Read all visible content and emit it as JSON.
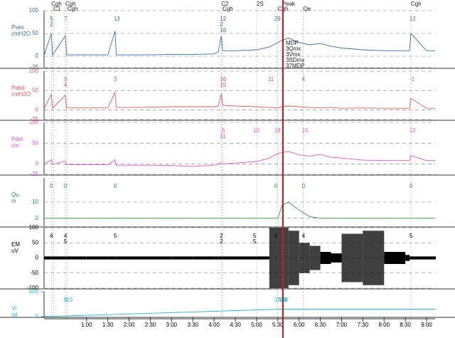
{
  "chart_data": [
    {
      "type": "line",
      "title": "Pves",
      "subtitle": "cmH2O",
      "x": [
        0,
        0.17,
        0.2,
        0.5,
        0.53,
        1,
        1.5,
        1.67,
        1.7,
        2,
        2.5,
        3,
        3.5,
        4,
        4.1,
        4.17,
        4.2,
        4.5,
        5,
        5.3,
        5.5,
        5.6,
        5.75,
        6,
        6.25,
        6.5,
        6.75,
        7,
        7.5,
        8,
        8.5,
        8.6,
        8.63,
        9,
        9.2
      ],
      "series": [
        {
          "color": "#3a6ea5",
          "values": [
            2,
            50,
            3,
            45,
            3,
            3,
            3,
            55,
            3,
            3,
            3,
            4,
            4,
            5,
            10,
            45,
            12,
            12,
            14,
            20,
            30,
            35,
            40,
            30,
            25,
            28,
            22,
            18,
            14,
            12,
            12,
            12,
            50,
            12,
            12
          ]
        }
      ],
      "ylim": [
        -25,
        100
      ],
      "yticks": [
        -25,
        0,
        50,
        100
      ],
      "grid": true,
      "events": [
        {
          "x": 0.17,
          "label": "Cgh"
        },
        {
          "x": 0.22,
          "label": "C1"
        },
        {
          "x": 0.5,
          "label": "Cgh"
        },
        {
          "x": 0.55,
          "label": "Cgh"
        },
        {
          "x": 4.17,
          "label": "C2"
        },
        {
          "x": 4.2,
          "label": "Cgh"
        },
        {
          "x": 5.0,
          "label": "2S"
        },
        {
          "x": 5.5,
          "label": "Cgh"
        },
        {
          "x": 5.6,
          "label": "Peak"
        },
        {
          "x": 6.1,
          "label": "Qe"
        },
        {
          "x": 8.63,
          "label": "Cgh"
        }
      ],
      "markers": [
        "MDP",
        "3Qmx",
        "3Vmx",
        "3SDmx",
        "37MDP"
      ],
      "annotations": [
        {
          "x": 0.17,
          "label": "5"
        },
        {
          "x": 0.17,
          "label": "2"
        },
        {
          "x": 0.5,
          "label": "7"
        },
        {
          "x": 1.67,
          "label": "13"
        },
        {
          "x": 4.17,
          "label": "12"
        },
        {
          "x": 4.17,
          "label": "2"
        },
        {
          "x": 4.17,
          "label": "16"
        },
        {
          "x": 5.45,
          "label": "29"
        },
        {
          "x": 8.63,
          "label": "12"
        }
      ]
    },
    {
      "type": "line",
      "title": "Pabd",
      "subtitle": "cmH2O",
      "x": [
        0,
        0.17,
        0.2,
        0.5,
        0.53,
        1,
        1.5,
        1.67,
        1.7,
        2,
        2.5,
        3,
        3.5,
        4,
        4.1,
        4.17,
        4.2,
        4.5,
        5,
        5.3,
        5.5,
        5.6,
        5.75,
        6,
        6.25,
        6.5,
        6.75,
        7,
        7.5,
        8,
        8.5,
        8.6,
        8.63,
        9,
        9.2
      ],
      "series": [
        {
          "color": "#e05a5a",
          "values": [
            3,
            40,
            4,
            38,
            5,
            5,
            5,
            45,
            6,
            6,
            7,
            8,
            8,
            8,
            10,
            42,
            12,
            10,
            8,
            6,
            5,
            8,
            10,
            8,
            6,
            5,
            6,
            4,
            5,
            4,
            4,
            4,
            30,
            4,
            4
          ]
        }
      ],
      "ylim": [
        -25,
        100
      ],
      "yticks": [
        -25,
        0,
        50,
        100
      ],
      "grid": true,
      "annotations": [
        {
          "x": 0.5,
          "label": "3"
        },
        {
          "x": 0.5,
          "label": "4"
        },
        {
          "x": 1.67,
          "label": "3"
        },
        {
          "x": 4.17,
          "label": "16"
        },
        {
          "x": 4.17,
          "label": "15"
        },
        {
          "x": 5.3,
          "label": "11"
        },
        {
          "x": 6.1,
          "label": "4"
        },
        {
          "x": 8.63,
          "label": "-1"
        }
      ]
    },
    {
      "type": "line",
      "title": "Pdet",
      "subtitle": "cm",
      "x": [
        0,
        0.17,
        0.2,
        0.5,
        0.53,
        1,
        1.5,
        1.67,
        1.7,
        2,
        2.5,
        3,
        3.5,
        4,
        4.1,
        4.17,
        4.2,
        4.5,
        5,
        5.3,
        5.5,
        5.6,
        5.75,
        6,
        6.25,
        6.5,
        6.75,
        7,
        7.5,
        8,
        8.5,
        8.6,
        8.63,
        9,
        9.2
      ],
      "series": [
        {
          "color": "#e055c8",
          "values": [
            -1,
            10,
            -1,
            7,
            -2,
            -2,
            -2,
            10,
            -3,
            -3,
            -3,
            -4,
            -6,
            -3,
            0,
            3,
            0,
            2,
            6,
            14,
            25,
            27,
            30,
            22,
            19,
            23,
            16,
            14,
            9,
            8,
            8,
            8,
            20,
            8,
            8
          ]
        }
      ],
      "ylim": [
        -25,
        100
      ],
      "yticks": [
        -25,
        0,
        50,
        100
      ],
      "grid": true,
      "annotations": [
        {
          "x": 4.17,
          "label": "-5"
        },
        {
          "x": 4.17,
          "label": "11"
        },
        {
          "x": 4.95,
          "label": "10"
        },
        {
          "x": 5.45,
          "label": "18"
        },
        {
          "x": 6.1,
          "label": "15"
        },
        {
          "x": 8.63,
          "label": "13"
        }
      ]
    },
    {
      "type": "line",
      "title": "Qu",
      "subtitle": "m",
      "x": [
        0,
        0.17,
        0.2,
        0.5,
        0.53,
        1,
        1.5,
        1.67,
        1.7,
        2,
        2.5,
        3,
        3.5,
        4,
        4.1,
        4.17,
        4.2,
        4.5,
        5,
        5.3,
        5.5,
        5.6,
        5.75,
        6,
        6.25,
        6.5,
        6.75,
        7,
        7.5,
        8,
        8.5,
        8.6,
        8.63,
        9,
        9.2
      ],
      "series": [
        {
          "color": "#2a9a3a",
          "values": [
            0,
            0,
            0,
            0,
            0,
            0,
            0,
            0,
            0,
            0,
            0,
            0,
            0,
            0,
            0,
            0,
            0,
            0,
            0,
            0,
            0,
            8,
            10,
            5,
            1,
            0,
            0,
            0,
            0,
            0,
            0,
            0,
            0,
            0,
            0
          ]
        }
      ],
      "ylim": [
        -5,
        25
      ],
      "yticks": [
        0,
        10
      ],
      "grid": true,
      "annotations": [
        {
          "x": 0.17,
          "label": "0"
        },
        {
          "x": 0.5,
          "label": "0"
        },
        {
          "x": 1.67,
          "label": "0"
        },
        {
          "x": 5.45,
          "label": "0"
        },
        {
          "x": 6.1,
          "label": "0"
        },
        {
          "x": 8.63,
          "label": "0"
        }
      ]
    },
    {
      "type": "burst",
      "title": "EM",
      "subtitle": "uV",
      "x": [
        0,
        0.17,
        0.2,
        0.5,
        0.53,
        1,
        1.5,
        1.67,
        1.7,
        2,
        2.5,
        3,
        3.5,
        4,
        4.1,
        4.17,
        4.2,
        4.5,
        5,
        5.3,
        5.5,
        5.6,
        5.75,
        6,
        6.25,
        6.5,
        6.75,
        7,
        7.5,
        8,
        8.5,
        8.6,
        8.63,
        9,
        9.2
      ],
      "series": [
        {
          "color": "#000000",
          "values": [
            5,
            5,
            5,
            5,
            5,
            5,
            5,
            5,
            5,
            5,
            5,
            5,
            5,
            5,
            5,
            5,
            5,
            5,
            5,
            100,
            100,
            100,
            90,
            50,
            40,
            20,
            15,
            80,
            90,
            20,
            10,
            5,
            5,
            5,
            5
          ]
        }
      ],
      "ylim": [
        -100,
        100
      ],
      "yticks": [
        -100,
        -50,
        0,
        50,
        100
      ],
      "grid": true,
      "annotations": [
        {
          "x": 0.17,
          "label": "4"
        },
        {
          "x": 0.5,
          "label": "4"
        },
        {
          "x": 0.5,
          "label": "5"
        },
        {
          "x": 1.67,
          "label": "5"
        },
        {
          "x": 4.17,
          "label": "2"
        },
        {
          "x": 4.17,
          "label": "2"
        },
        {
          "x": 4.95,
          "label": "5"
        },
        {
          "x": 4.95,
          "label": "5"
        },
        {
          "x": 5.45,
          "label": "4"
        },
        {
          "x": 6.1,
          "label": "4"
        },
        {
          "x": 8.63,
          "label": "5"
        }
      ]
    },
    {
      "type": "line",
      "title": "Vi",
      "subtitle": "ml",
      "x": [
        0,
        0.17,
        0.2,
        0.5,
        0.53,
        1,
        1.5,
        1.67,
        1.7,
        2,
        2.5,
        3,
        3.5,
        4,
        4.1,
        4.17,
        4.2,
        4.5,
        5,
        5.3,
        5.5,
        5.6,
        5.75,
        6,
        6.25,
        6.5,
        6.75,
        7,
        7.5,
        8,
        8.5,
        8.6,
        8.63,
        9,
        9.2
      ],
      "series": [
        {
          "color": "#22b5d8",
          "values": [
            0,
            5,
            5,
            13,
            14,
            27,
            40,
            45,
            46,
            54,
            67,
            81,
            94,
            108,
            110,
            112,
            113,
            121,
            135,
            143,
            150,
            150,
            150,
            150,
            150,
            150,
            150,
            150,
            150,
            150,
            150,
            150,
            150,
            150,
            150
          ]
        }
      ],
      "ylim": [
        0,
        500
      ],
      "yticks": [
        0,
        500
      ],
      "grid": false,
      "annotations": [
        {
          "x": 0.5,
          "label": "8"
        },
        {
          "x": 0.55,
          "label": "10"
        },
        {
          "x": 5.45,
          "label": "150"
        },
        {
          "x": 5.55,
          "label": "148"
        },
        {
          "x": 5.6,
          "label": "58"
        }
      ]
    }
  ],
  "time_axis": {
    "xlim": [
      0,
      9.2
    ],
    "xticks": [
      {
        "value": 1,
        "label": "1:00"
      },
      {
        "value": 1.5,
        "label": "1:30"
      },
      {
        "value": 2,
        "label": "2:00"
      },
      {
        "value": 2.5,
        "label": "2:30"
      },
      {
        "value": 3,
        "label": "3:00"
      },
      {
        "value": 3.5,
        "label": "3:30"
      },
      {
        "value": 4,
        "label": "4:00"
      },
      {
        "value": 4.5,
        "label": "4:30"
      },
      {
        "value": 5,
        "label": "5:00"
      },
      {
        "value": 5.5,
        "label": "5:30"
      },
      {
        "value": 6,
        "label": "6:00"
      },
      {
        "value": 6.5,
        "label": "6:30"
      },
      {
        "value": 7,
        "label": "7:00"
      },
      {
        "value": 7.5,
        "label": "7:30"
      },
      {
        "value": 8,
        "label": "8:00"
      },
      {
        "value": 8.5,
        "label": "8:30"
      },
      {
        "value": 9,
        "label": "9:00"
      }
    ],
    "cursor": 5.62
  }
}
